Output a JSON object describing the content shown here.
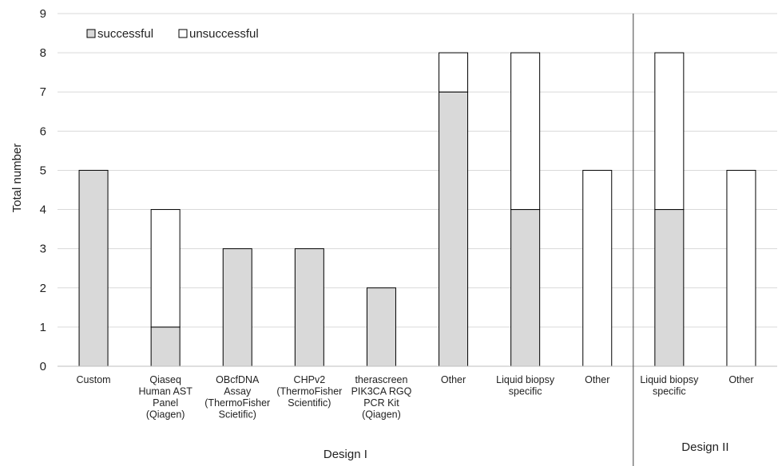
{
  "chart_data": {
    "type": "bar",
    "stacked": true,
    "ylabel": "Total number",
    "ylim": [
      0,
      9
    ],
    "yticks": [
      0,
      1,
      2,
      3,
      4,
      5,
      6,
      7,
      8,
      9
    ],
    "grid": true,
    "legend_position": "top-left",
    "categories": [
      [
        "Custom"
      ],
      [
        "Qiaseq",
        "Human AST",
        "Panel",
        "(Qiagen)"
      ],
      [
        "OBcfDNA",
        "Assay",
        "(ThermoFisher",
        "Scietific)"
      ],
      [
        "CHPv2",
        "(ThermoFisher",
        "Scientific)"
      ],
      [
        "therascreen",
        "PIK3CA RGQ",
        "PCR Kit",
        "(Qiagen)"
      ],
      [
        "Other"
      ],
      [
        "Liquid biopsy",
        "specific"
      ],
      [
        "Other"
      ],
      [
        "Liquid biopsy",
        "specific"
      ],
      [
        "Other"
      ]
    ],
    "series": [
      {
        "name": "successful",
        "color": "#d9d9d9",
        "values": [
          5,
          1,
          3,
          3,
          2,
          7,
          4,
          0,
          4,
          0
        ]
      },
      {
        "name": "unsuccessful",
        "color": "#ffffff",
        "values": [
          0,
          3,
          0,
          0,
          0,
          1,
          4,
          5,
          4,
          5
        ]
      }
    ],
    "groups": [
      {
        "label": "Design I",
        "start": 0,
        "end": 7
      },
      {
        "label": "Design II",
        "start": 8,
        "end": 9
      }
    ]
  }
}
